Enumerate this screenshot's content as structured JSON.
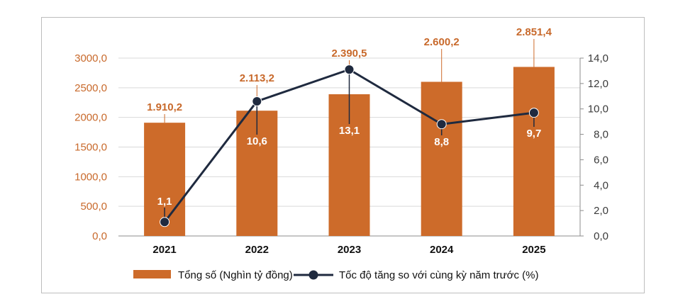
{
  "chart_data": {
    "type": "bar",
    "categories": [
      "2021",
      "2022",
      "2023",
      "2024",
      "2025"
    ],
    "bar_labels": [
      "1.910,2",
      "2.113,2",
      "2.390,5",
      "2.600,2",
      "2.851,4"
    ],
    "line_labels": [
      "1,1",
      "10,6",
      "13,1",
      "8,8",
      "9,7"
    ],
    "series": [
      {
        "name": "Tổng số (Nghìn tỷ đồng)",
        "type": "bar",
        "axis": "left",
        "values": [
          1910.2,
          2113.2,
          2390.5,
          2600.2,
          2851.4
        ]
      },
      {
        "name": "Tốc độ tăng so với cùng kỳ năm trước (%)",
        "type": "line",
        "axis": "right",
        "values": [
          1.1,
          10.6,
          13.1,
          8.8,
          9.7
        ]
      }
    ],
    "y_left": {
      "lim": [
        0,
        3000
      ],
      "ticks": [
        "0,0",
        "500,0",
        "1000,0",
        "1500,0",
        "2000,0",
        "2500,0",
        "3000,0"
      ]
    },
    "y_right": {
      "lim": [
        0,
        14
      ],
      "ticks": [
        "0,0",
        "2,0",
        "4,0",
        "6,0",
        "8,0",
        "10,0",
        "12,0",
        "14,0"
      ]
    },
    "grid": true,
    "legend_position": "bottom",
    "colors": {
      "bar": "#cd6b2a",
      "line": "#1f2a3f",
      "grid": "#d9d9d9",
      "left_axis_text": "#c8692b"
    }
  }
}
